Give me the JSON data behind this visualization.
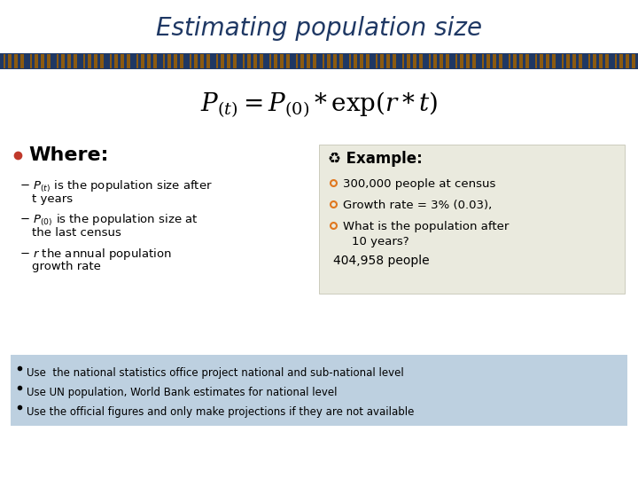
{
  "title": "Estimating population size",
  "title_color": "#1F3864",
  "title_fontsize": 20,
  "formula": "$P_{(t)} = P_{(0)} * \\mathregular{exp}(r * t)$",
  "where_label": "Where:",
  "bullet_color": "#C0392B",
  "example_label": "♻ Example:",
  "example_items": [
    "300,000 people at census",
    "Growth rate = 3% (0.03),",
    "What is the population after\n    10 years?"
  ],
  "example_answer": "404,958 people",
  "example_box_color": "#EAEADE",
  "footer_items": [
    "Use  the national statistics office project national and sub-national level",
    "Use UN population, World Bank estimates for national level",
    "Use the official figures and only make projections if they are not available"
  ],
  "footer_bg": "#BDD0E0",
  "footer_text_color": "#000000",
  "orange_bullet": "#E07820",
  "stripe_dark": "#1F3864",
  "stripe_light": "#8B6020"
}
